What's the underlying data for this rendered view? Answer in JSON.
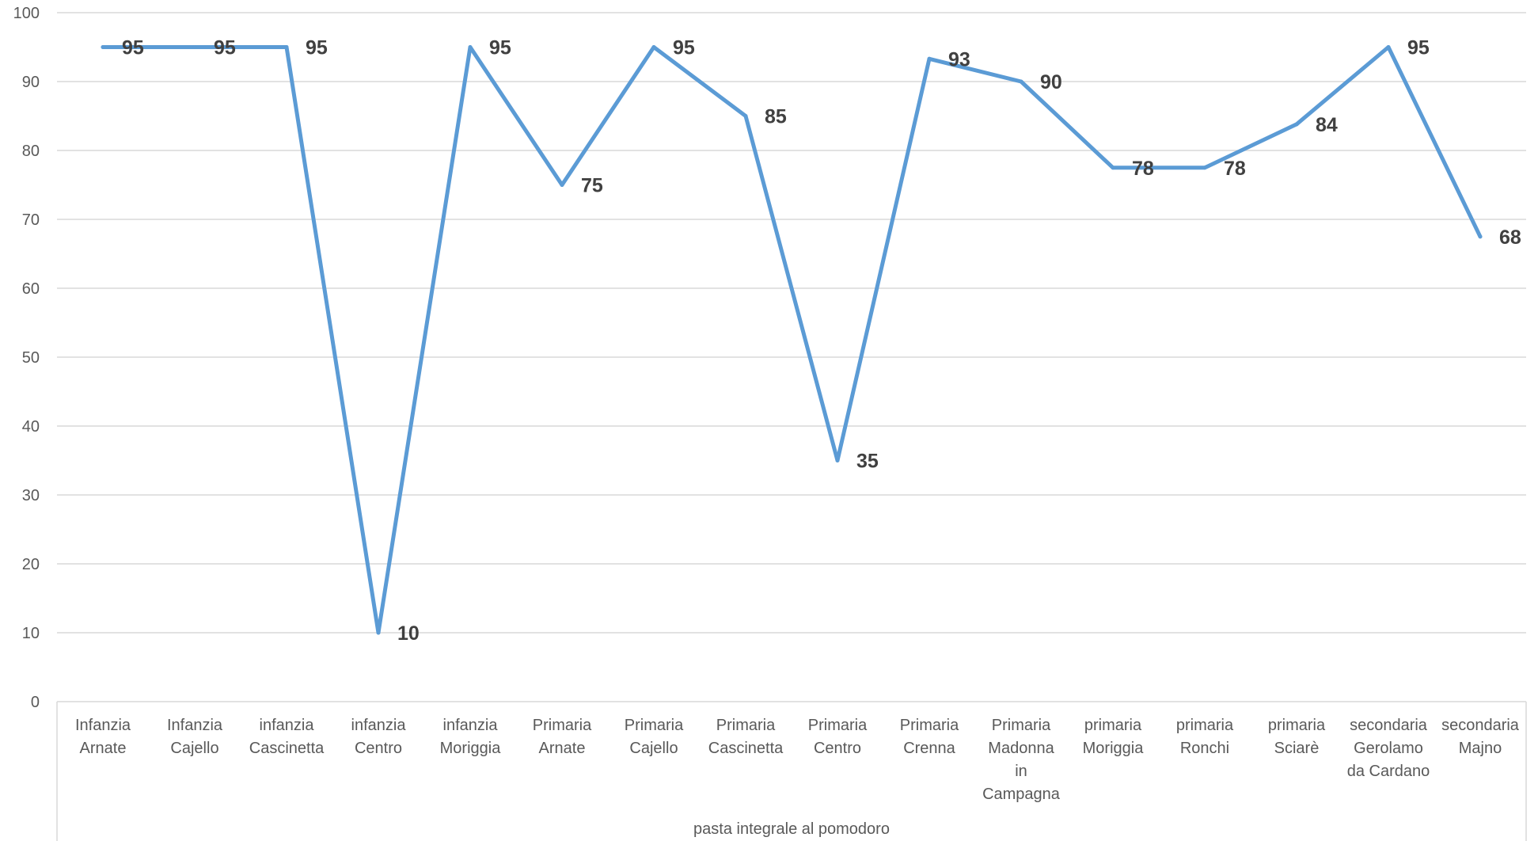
{
  "chart_data": {
    "type": "line",
    "title": "",
    "xlabel": "",
    "ylabel": "",
    "ylim": [
      0,
      100
    ],
    "yticks": [
      0,
      10,
      20,
      30,
      40,
      50,
      60,
      70,
      80,
      90,
      100
    ],
    "grid": true,
    "legend": "none",
    "group_label": "pasta integrale al pomodoro",
    "categories": [
      [
        "Infanzia",
        "Arnate"
      ],
      [
        "Infanzia",
        "Cajello"
      ],
      [
        "infanzia",
        "Cascinetta"
      ],
      [
        "infanzia",
        "Centro"
      ],
      [
        "infanzia",
        "Moriggia"
      ],
      [
        "Primaria",
        "Arnate"
      ],
      [
        "Primaria",
        "Cajello"
      ],
      [
        "Primaria",
        "Cascinetta"
      ],
      [
        "Primaria",
        "Centro"
      ],
      [
        "Primaria",
        "Crenna"
      ],
      [
        "Primaria",
        "Madonna",
        "in",
        "Campagna"
      ],
      [
        "primaria",
        "Moriggia"
      ],
      [
        "primaria",
        "Ronchi"
      ],
      [
        "primaria",
        "Sciarè"
      ],
      [
        "secondaria",
        "Gerolamo",
        "da Cardano"
      ],
      [
        "secondaria",
        "Majno"
      ]
    ],
    "series": [
      {
        "color": "#5B9BD5",
        "values": [
          95,
          95,
          95,
          10,
          95,
          75,
          95,
          85,
          35,
          93.3,
          90,
          77.5,
          77.5,
          83.8,
          95,
          67.5
        ],
        "labels": [
          "95",
          "95",
          "95",
          "10",
          "95",
          "75",
          "95",
          "85",
          "35",
          "93",
          "90",
          "78",
          "78",
          "84",
          "95",
          "68"
        ]
      }
    ],
    "colors": {
      "line": "#5B9BD5",
      "grid": "#D9D9D9",
      "axis_text": "#595959",
      "data_label": "#404040"
    }
  }
}
